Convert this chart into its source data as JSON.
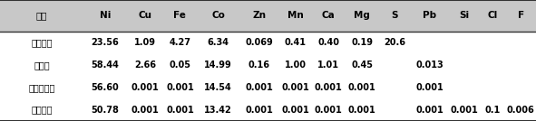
{
  "columns": [
    "元素",
    "Ni",
    "Cu",
    "Fe",
    "Co",
    "Zn",
    "Mn",
    "Ca",
    "Mg",
    "S",
    "Pb",
    "Si",
    "Cl",
    "F"
  ],
  "rows": [
    [
      "原料成分",
      "23.56",
      "1.09",
      "4.27",
      "6.34",
      "0.069",
      "0.41",
      "0.40",
      "0.19",
      "20.6",
      "",
      "",
      "",
      ""
    ],
    [
      "浸出液",
      "58.44",
      "2.66",
      "0.05",
      "14.99",
      "0.16",
      "1.00",
      "1.01",
      "0.45",
      "",
      "0.013",
      "",
      "",
      ""
    ],
    [
      "除钙镁后液",
      "56.60",
      "0.001",
      "0.001",
      "14.54",
      "0.001",
      "0.001",
      "0.001",
      "0.001",
      "",
      "0.001",
      "",
      "",
      ""
    ],
    [
      "镍钴清液",
      "50.78",
      "0.001",
      "0.001",
      "13.42",
      "0.001",
      "0.001",
      "0.001",
      "0.001",
      "",
      "0.001",
      "0.001",
      "0.1",
      "0.006"
    ]
  ],
  "col_weights": [
    1.55,
    0.8,
    0.68,
    0.62,
    0.8,
    0.72,
    0.62,
    0.62,
    0.62,
    0.6,
    0.7,
    0.56,
    0.5,
    0.56
  ],
  "header_font_size": 7.5,
  "data_font_size": 7.0,
  "fig_width": 5.91,
  "fig_height": 1.34,
  "bg_color": "#ffffff",
  "header_bg": "#c8c8c8",
  "line_color": "#333333",
  "lw_thick": 1.5,
  "lw_mid": 1.0
}
